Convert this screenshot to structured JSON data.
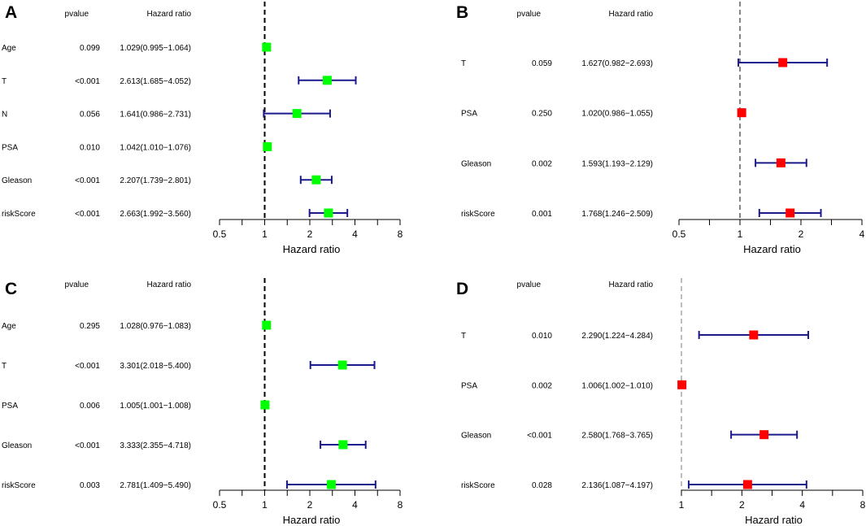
{
  "chart_data": [
    {
      "type": "forest",
      "panel_label": "A",
      "header": {
        "pvalue": "pvalue",
        "hazard": "Hazard ratio"
      },
      "xlabel": "Hazard ratio",
      "xscale": "log",
      "xlim": [
        0.5,
        8
      ],
      "ticks": [
        "0.5",
        "1",
        "2",
        "4",
        "8"
      ],
      "ref_line": 1,
      "ref_style": "black",
      "marker_color": "#00ff00",
      "ci_color": "#1a1a8c",
      "rows": [
        {
          "label": "Age",
          "pvalue": "0.099",
          "hr_text": "1.029(0.995−1.064)",
          "hr": 1.029,
          "lower": 0.995,
          "upper": 1.064
        },
        {
          "label": "T",
          "pvalue": "<0.001",
          "hr_text": "2.613(1.685−4.052)",
          "hr": 2.613,
          "lower": 1.685,
          "upper": 4.052
        },
        {
          "label": "N",
          "pvalue": "0.056",
          "hr_text": "1.641(0.986−2.731)",
          "hr": 1.641,
          "lower": 0.986,
          "upper": 2.731
        },
        {
          "label": "PSA",
          "pvalue": "0.010",
          "hr_text": "1.042(1.010−1.076)",
          "hr": 1.042,
          "lower": 1.01,
          "upper": 1.076
        },
        {
          "label": "Gleason",
          "pvalue": "<0.001",
          "hr_text": "2.207(1.739−2.801)",
          "hr": 2.207,
          "lower": 1.739,
          "upper": 2.801
        },
        {
          "label": "riskScore",
          "pvalue": "<0.001",
          "hr_text": "2.663(1.992−3.560)",
          "hr": 2.663,
          "lower": 1.992,
          "upper": 3.56
        }
      ]
    },
    {
      "type": "forest",
      "panel_label": "B",
      "header": {
        "pvalue": "pvalue",
        "hazard": "Hazard ratio"
      },
      "xlabel": "Hazard ratio",
      "xscale": "log",
      "xlim": [
        0.5,
        4
      ],
      "ticks": [
        "0.5",
        "1",
        "2",
        "4"
      ],
      "ref_line": 1,
      "ref_style": "dark",
      "marker_color": "#ff0000",
      "ci_color": "#1a1a8c",
      "rows": [
        {
          "label": "T",
          "pvalue": "0.059",
          "hr_text": "1.627(0.982−2.693)",
          "hr": 1.627,
          "lower": 0.982,
          "upper": 2.693
        },
        {
          "label": "PSA",
          "pvalue": "0.250",
          "hr_text": "1.020(0.986−1.055)",
          "hr": 1.02,
          "lower": 0.986,
          "upper": 1.055
        },
        {
          "label": "Gleason",
          "pvalue": "0.002",
          "hr_text": "1.593(1.193−2.129)",
          "hr": 1.593,
          "lower": 1.193,
          "upper": 2.129
        },
        {
          "label": "riskScore",
          "pvalue": "0.001",
          "hr_text": "1.768(1.246−2.509)",
          "hr": 1.768,
          "lower": 1.246,
          "upper": 2.509
        }
      ]
    },
    {
      "type": "forest",
      "panel_label": "C",
      "header": {
        "pvalue": "pvalue",
        "hazard": "Hazard ratio"
      },
      "xlabel": "Hazard ratio",
      "xscale": "log",
      "xlim": [
        0.5,
        8
      ],
      "ticks": [
        "0.5",
        "1",
        "2",
        "4",
        "8"
      ],
      "ref_line": 1,
      "ref_style": "black",
      "marker_color": "#00ff00",
      "ci_color": "#1a1a8c",
      "rows": [
        {
          "label": "Age",
          "pvalue": "0.295",
          "hr_text": "1.028(0.976−1.083)",
          "hr": 1.028,
          "lower": 0.976,
          "upper": 1.083
        },
        {
          "label": "T",
          "pvalue": "<0.001",
          "hr_text": "3.301(2.018−5.400)",
          "hr": 3.301,
          "lower": 2.018,
          "upper": 5.4
        },
        {
          "label": "PSA",
          "pvalue": "0.006",
          "hr_text": "1.005(1.001−1.008)",
          "hr": 1.005,
          "lower": 1.001,
          "upper": 1.008
        },
        {
          "label": "Gleason",
          "pvalue": "<0.001",
          "hr_text": "3.333(2.355−4.718)",
          "hr": 3.333,
          "lower": 2.355,
          "upper": 4.718
        },
        {
          "label": "riskScore",
          "pvalue": "0.003",
          "hr_text": "2.781(1.409−5.490)",
          "hr": 2.781,
          "lower": 1.409,
          "upper": 5.49
        }
      ]
    },
    {
      "type": "forest",
      "panel_label": "D",
      "header": {
        "pvalue": "pvalue",
        "hazard": "Hazard ratio"
      },
      "xlabel": "Hazard ratio",
      "xscale": "log",
      "xlim": [
        1,
        8
      ],
      "ticks": [
        "1",
        "2",
        "4",
        "8"
      ],
      "ref_line": 1,
      "ref_style": "light",
      "marker_color": "#ff0000",
      "ci_color": "#1a1a8c",
      "rows": [
        {
          "label": "T",
          "pvalue": "0.010",
          "hr_text": "2.290(1.224−4.284)",
          "hr": 2.29,
          "lower": 1.224,
          "upper": 4.284
        },
        {
          "label": "PSA",
          "pvalue": "0.002",
          "hr_text": "1.006(1.002−1.010)",
          "hr": 1.006,
          "lower": 1.002,
          "upper": 1.01
        },
        {
          "label": "Gleason",
          "pvalue": "<0.001",
          "hr_text": "2.580(1.768−3.765)",
          "hr": 2.58,
          "lower": 1.768,
          "upper": 3.765
        },
        {
          "label": "riskScore",
          "pvalue": "0.028",
          "hr_text": "2.136(1.087−4.197)",
          "hr": 2.136,
          "lower": 1.087,
          "upper": 4.197
        }
      ]
    }
  ]
}
